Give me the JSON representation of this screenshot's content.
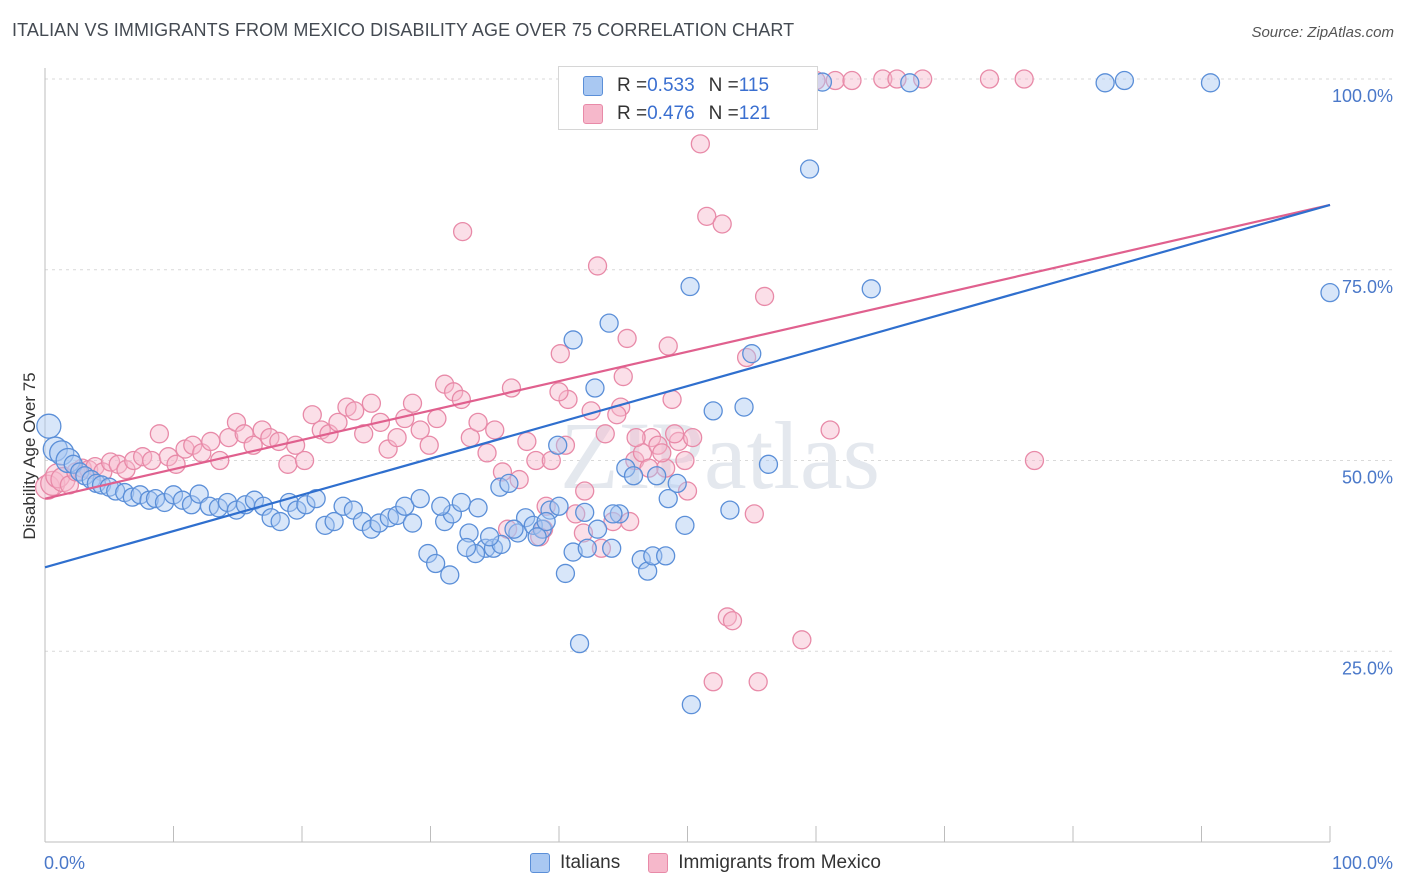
{
  "title": "ITALIAN VS IMMIGRANTS FROM MEXICO DISABILITY AGE OVER 75 CORRELATION CHART",
  "source": "Source: ZipAtlas.com",
  "watermark": "ZIPatlas",
  "colors": {
    "blue_fill": "#a9c8f2",
    "blue_stroke": "#5b8fd8",
    "blue_line": "#2f6fce",
    "pink_fill": "#f6b8cb",
    "pink_stroke": "#e88aa8",
    "pink_line": "#e0608e",
    "tick_label": "#4a78c9",
    "grid": "#d9d9d9"
  },
  "stats": {
    "row1": {
      "r_label": "R = ",
      "r_value": "0.533",
      "n_label": "N = ",
      "n_value": "115"
    },
    "row2": {
      "r_label": "R = ",
      "r_value": "0.476",
      "n_label": "N = ",
      "n_value": "121"
    }
  },
  "legend": {
    "italians": "Italians",
    "mexico": "Immigrants from Mexico"
  },
  "chart_data": {
    "type": "scatter",
    "xlabel": "",
    "ylabel": "Disability Age Over 75",
    "xlim": [
      0,
      100
    ],
    "ylim": [
      0,
      100
    ],
    "x_tick_labels": [
      {
        "value": 0,
        "label": "0.0%"
      },
      {
        "value": 100,
        "label": "100.0%"
      }
    ],
    "y_tick_labels": [
      {
        "value": 25,
        "label": "25.0%"
      },
      {
        "value": 50,
        "label": "50.0%"
      },
      {
        "value": 75,
        "label": "75.0%"
      },
      {
        "value": 100,
        "label": "100.0%"
      }
    ],
    "grid": true,
    "series": [
      {
        "name": "Italians",
        "trend": {
          "x": [
            0,
            100
          ],
          "y": [
            36,
            83.5
          ]
        },
        "points": [
          [
            0.3,
            54.5
          ],
          [
            0.8,
            51.5
          ],
          [
            1.3,
            51
          ],
          [
            1.8,
            50
          ],
          [
            2.2,
            49.5
          ],
          [
            2.7,
            48.5
          ],
          [
            3.1,
            48
          ],
          [
            3.6,
            47.5
          ],
          [
            4,
            47
          ],
          [
            4.4,
            46.8
          ],
          [
            5,
            46.5
          ],
          [
            5.5,
            46
          ],
          [
            6.2,
            45.8
          ],
          [
            6.8,
            45.2
          ],
          [
            7.4,
            45.5
          ],
          [
            8.1,
            44.8
          ],
          [
            8.6,
            45
          ],
          [
            9.3,
            44.5
          ],
          [
            10,
            45.5
          ],
          [
            10.7,
            44.8
          ],
          [
            11.4,
            44.2
          ],
          [
            12,
            45.6
          ],
          [
            12.8,
            44
          ],
          [
            13.5,
            43.8
          ],
          [
            14.2,
            44.5
          ],
          [
            14.9,
            43.5
          ],
          [
            15.6,
            44.2
          ],
          [
            16.3,
            44.8
          ],
          [
            17,
            44
          ],
          [
            17.6,
            42.5
          ],
          [
            18.3,
            42
          ],
          [
            19,
            44.5
          ],
          [
            19.6,
            43.5
          ],
          [
            20.3,
            44.2
          ],
          [
            21.1,
            45
          ],
          [
            21.8,
            41.5
          ],
          [
            22.5,
            42
          ],
          [
            23.2,
            44
          ],
          [
            24,
            43.5
          ],
          [
            24.7,
            42
          ],
          [
            25.4,
            41
          ],
          [
            26,
            41.8
          ],
          [
            26.8,
            42.5
          ],
          [
            27.4,
            42.8
          ],
          [
            28,
            44
          ],
          [
            28.6,
            41.8
          ],
          [
            29.2,
            45
          ],
          [
            29.8,
            37.8
          ],
          [
            30.4,
            36.5
          ],
          [
            31.1,
            42
          ],
          [
            31.7,
            43
          ],
          [
            32.4,
            44.5
          ],
          [
            33,
            40.5
          ],
          [
            33.7,
            43.8
          ],
          [
            34.3,
            38.5
          ],
          [
            34.9,
            38.5
          ],
          [
            35.4,
            46.5
          ],
          [
            36.1,
            47
          ],
          [
            36.8,
            40.5
          ],
          [
            37.4,
            42.5
          ],
          [
            38,
            41.5
          ],
          [
            38.7,
            41
          ],
          [
            39.3,
            43.5
          ],
          [
            39.9,
            52
          ],
          [
            40.5,
            35.2
          ],
          [
            41.1,
            38
          ],
          [
            41.6,
            26
          ],
          [
            42.2,
            38.5
          ],
          [
            42.8,
            59.5
          ],
          [
            44.1,
            38.5
          ],
          [
            44.7,
            43
          ],
          [
            45.2,
            49
          ],
          [
            45.8,
            48
          ],
          [
            46.4,
            37
          ],
          [
            46.9,
            35.5
          ],
          [
            47.3,
            37.5
          ],
          [
            48.3,
            37.5
          ],
          [
            49.2,
            47
          ],
          [
            49.8,
            41.5
          ],
          [
            52,
            56.5
          ],
          [
            53.3,
            43.5
          ],
          [
            54.4,
            57
          ],
          [
            56.3,
            49.5
          ],
          [
            64.3,
            72.5
          ],
          [
            67.3,
            99.5
          ],
          [
            82.5,
            99.5
          ],
          [
            84,
            99.8
          ],
          [
            90.7,
            99.5
          ],
          [
            100,
            72
          ],
          [
            41.1,
            65.8
          ],
          [
            43.9,
            68
          ],
          [
            47.6,
            48
          ],
          [
            50.2,
            72.8
          ],
          [
            55,
            64
          ],
          [
            59.5,
            88.2
          ],
          [
            58,
            99.8
          ],
          [
            60.5,
            99.6
          ],
          [
            50.2,
            99.5
          ],
          [
            51.8,
            99.8
          ],
          [
            53.5,
            99.8
          ],
          [
            55.2,
            99.6
          ],
          [
            56.8,
            99.8
          ],
          [
            48.5,
            45
          ],
          [
            44.2,
            43
          ],
          [
            43,
            41
          ],
          [
            42,
            43.2
          ],
          [
            40,
            44
          ],
          [
            39,
            42
          ],
          [
            38.3,
            40
          ],
          [
            36.5,
            41
          ],
          [
            35.5,
            39
          ],
          [
            34.6,
            40
          ],
          [
            33.5,
            37.8
          ],
          [
            32.8,
            38.6
          ],
          [
            31.5,
            35
          ],
          [
            30.8,
            44
          ],
          [
            50.3,
            18
          ]
        ]
      },
      {
        "name": "Immigrants from Mexico",
        "trend": {
          "x": [
            0,
            100
          ],
          "y": [
            45,
            83.5
          ]
        },
        "points": [
          [
            0.2,
            46.5
          ],
          [
            0.6,
            47
          ],
          [
            1,
            48
          ],
          [
            1.4,
            47.5
          ],
          [
            1.9,
            46.8
          ],
          [
            2.4,
            48.5
          ],
          [
            2.9,
            49
          ],
          [
            3.4,
            48.8
          ],
          [
            3.9,
            49.2
          ],
          [
            4.5,
            48.5
          ],
          [
            5.1,
            49.8
          ],
          [
            5.7,
            49.5
          ],
          [
            6.3,
            48.8
          ],
          [
            6.9,
            50
          ],
          [
            7.6,
            50.5
          ],
          [
            8.3,
            50
          ],
          [
            8.9,
            53.5
          ],
          [
            9.6,
            50.5
          ],
          [
            10.2,
            49.5
          ],
          [
            10.9,
            51.5
          ],
          [
            11.5,
            52
          ],
          [
            12.2,
            51
          ],
          [
            12.9,
            52.5
          ],
          [
            13.6,
            50
          ],
          [
            14.3,
            53
          ],
          [
            14.9,
            55
          ],
          [
            15.5,
            53.5
          ],
          [
            16.2,
            52
          ],
          [
            16.9,
            54
          ],
          [
            17.5,
            53
          ],
          [
            18.2,
            52.5
          ],
          [
            18.9,
            49.5
          ],
          [
            19.5,
            52
          ],
          [
            20.2,
            50
          ],
          [
            20.8,
            56
          ],
          [
            21.5,
            54
          ],
          [
            22.1,
            53.5
          ],
          [
            22.8,
            55
          ],
          [
            23.5,
            57
          ],
          [
            24.1,
            56.5
          ],
          [
            24.8,
            53.5
          ],
          [
            25.4,
            57.5
          ],
          [
            26.1,
            55
          ],
          [
            26.7,
            51.5
          ],
          [
            27.4,
            53
          ],
          [
            28,
            55.5
          ],
          [
            28.6,
            57.5
          ],
          [
            29.2,
            54
          ],
          [
            29.9,
            52
          ],
          [
            30.5,
            55.5
          ],
          [
            31.1,
            60
          ],
          [
            31.8,
            59
          ],
          [
            32.4,
            58
          ],
          [
            33.1,
            53
          ],
          [
            33.7,
            55
          ],
          [
            34.4,
            51
          ],
          [
            35,
            54
          ],
          [
            35.6,
            48.5
          ],
          [
            36.3,
            59.5
          ],
          [
            36.9,
            47.5
          ],
          [
            37.5,
            52.5
          ],
          [
            38.2,
            50
          ],
          [
            38.8,
            41
          ],
          [
            39.4,
            50
          ],
          [
            40.1,
            64
          ],
          [
            40.7,
            58
          ],
          [
            41.3,
            43
          ],
          [
            41.9,
            40.5
          ],
          [
            42.5,
            56.5
          ],
          [
            43,
            75.5
          ],
          [
            43.6,
            53.5
          ],
          [
            44.2,
            42
          ],
          [
            44.8,
            57
          ],
          [
            45.3,
            66
          ],
          [
            45.9,
            50
          ],
          [
            46.5,
            51
          ],
          [
            47.2,
            53
          ],
          [
            47.7,
            52
          ],
          [
            48.3,
            49
          ],
          [
            48.8,
            58
          ],
          [
            49.3,
            52.5
          ],
          [
            49.8,
            50
          ],
          [
            50.4,
            53
          ],
          [
            51,
            91.5
          ],
          [
            51.5,
            82
          ],
          [
            52.7,
            81
          ],
          [
            53.1,
            29.5
          ],
          [
            54.6,
            63.5
          ],
          [
            55.2,
            43
          ],
          [
            56,
            71.5
          ],
          [
            58.9,
            26.5
          ],
          [
            61.1,
            54
          ],
          [
            65.2,
            100
          ],
          [
            66.3,
            100
          ],
          [
            68.3,
            100
          ],
          [
            73.5,
            100
          ],
          [
            76.2,
            100
          ],
          [
            77,
            50
          ],
          [
            32.5,
            80
          ],
          [
            36,
            41
          ],
          [
            38.5,
            40
          ],
          [
            39,
            44
          ],
          [
            40.5,
            52
          ],
          [
            43.3,
            38.5
          ],
          [
            45.5,
            42
          ],
          [
            47,
            49
          ],
          [
            48,
            51
          ],
          [
            49,
            53.5
          ],
          [
            52,
            21
          ],
          [
            55.5,
            21
          ],
          [
            53.5,
            29
          ],
          [
            50,
            46
          ],
          [
            44.5,
            56
          ],
          [
            42,
            46
          ],
          [
            40,
            59
          ],
          [
            48.5,
            65
          ],
          [
            46,
            53
          ],
          [
            45,
            61
          ],
          [
            60,
            99.8
          ],
          [
            61.5,
            99.8
          ],
          [
            62.8,
            99.8
          ],
          [
            55,
            99.8
          ]
        ]
      }
    ]
  }
}
